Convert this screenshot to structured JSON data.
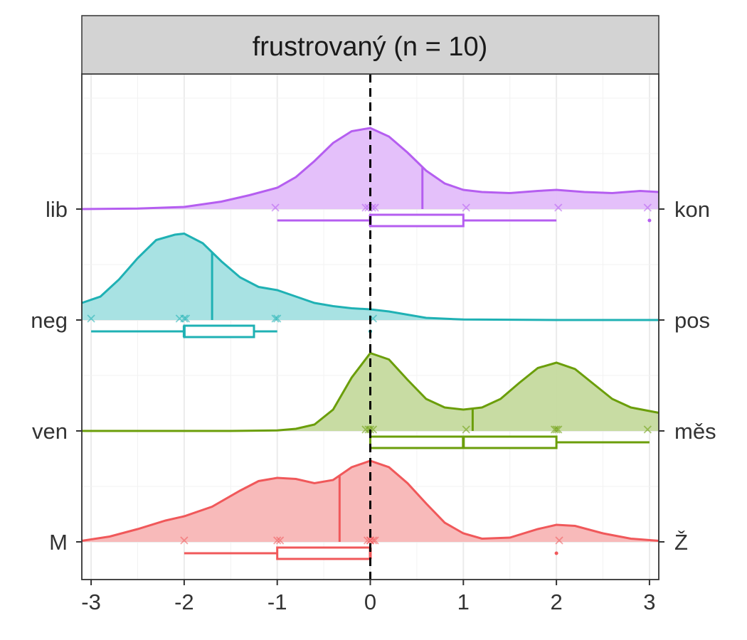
{
  "chart_data": {
    "type": "ridgeline",
    "title": "frustrovaný (n = 10)",
    "xlabel": "",
    "ylabel": "",
    "xlim": [
      -3.1,
      3.1
    ],
    "x_ticks": [
      -3,
      -2,
      -1,
      0,
      1,
      2,
      3
    ],
    "x_tick_labels": [
      "-3",
      "-2",
      "-1",
      "0",
      "1",
      "2",
      "3"
    ],
    "reference_line_x": 0,
    "grid": true,
    "legend": "none",
    "rows": [
      {
        "left_label": "M",
        "right_label": "Ž",
        "color": "#F0585A",
        "fill": "#F8B6B6",
        "median_line": -0.33,
        "points": [
          -2,
          -1,
          -0.97,
          -0.03,
          0,
          0,
          0.03,
          0.05,
          2.03
        ],
        "box": {
          "whisker_low": -2,
          "q1": -1,
          "median": 0,
          "q3": 0,
          "whisker_high": 0,
          "outliers": [
            2
          ]
        },
        "density": [
          [
            -3.1,
            0.01
          ],
          [
            -2.8,
            0.05
          ],
          [
            -2.5,
            0.12
          ],
          [
            -2.2,
            0.2
          ],
          [
            -2.0,
            0.24
          ],
          [
            -1.7,
            0.33
          ],
          [
            -1.4,
            0.48
          ],
          [
            -1.2,
            0.57
          ],
          [
            -1.0,
            0.6
          ],
          [
            -0.8,
            0.59
          ],
          [
            -0.6,
            0.55
          ],
          [
            -0.4,
            0.58
          ],
          [
            -0.2,
            0.7
          ],
          [
            0.0,
            0.76
          ],
          [
            0.2,
            0.7
          ],
          [
            0.4,
            0.55
          ],
          [
            0.6,
            0.36
          ],
          [
            0.8,
            0.18
          ],
          [
            1.0,
            0.08
          ],
          [
            1.2,
            0.03
          ],
          [
            1.5,
            0.04
          ],
          [
            1.8,
            0.12
          ],
          [
            2.0,
            0.16
          ],
          [
            2.2,
            0.15
          ],
          [
            2.5,
            0.08
          ],
          [
            2.8,
            0.03
          ],
          [
            3.1,
            0.01
          ]
        ]
      },
      {
        "left_label": "ven",
        "right_label": "měs",
        "color": "#6B9E0A",
        "fill": "#C5DA9E",
        "median_line": 1.1,
        "points": [
          -0.05,
          -0.02,
          0.0,
          0.03,
          1.03,
          1.98,
          2.0,
          2.02,
          2.98
        ],
        "box": {
          "whisker_low": 0,
          "q1": 0,
          "median": 1,
          "q3": 2,
          "whisker_high": 3,
          "outliers": []
        },
        "density": [
          [
            -3.1,
            0.0
          ],
          [
            -1.5,
            0.0
          ],
          [
            -1.0,
            0.005
          ],
          [
            -0.8,
            0.02
          ],
          [
            -0.6,
            0.06
          ],
          [
            -0.4,
            0.2
          ],
          [
            -0.2,
            0.5
          ],
          [
            0.0,
            0.73
          ],
          [
            0.2,
            0.67
          ],
          [
            0.4,
            0.48
          ],
          [
            0.6,
            0.3
          ],
          [
            0.8,
            0.22
          ],
          [
            1.0,
            0.2
          ],
          [
            1.2,
            0.22
          ],
          [
            1.4,
            0.3
          ],
          [
            1.6,
            0.45
          ],
          [
            1.8,
            0.59
          ],
          [
            2.0,
            0.64
          ],
          [
            2.2,
            0.58
          ],
          [
            2.4,
            0.44
          ],
          [
            2.6,
            0.3
          ],
          [
            2.8,
            0.22
          ],
          [
            3.1,
            0.17
          ]
        ]
      },
      {
        "left_label": "neg",
        "right_label": "pos",
        "color": "#1FB1B4",
        "fill": "#A3E0E1",
        "median_line": -1.7,
        "points": [
          -3,
          -2.05,
          -2.0,
          -1.98,
          -1.02,
          -1.0,
          0.03
        ],
        "box": {
          "whisker_low": -3,
          "q1": -2,
          "median": -2,
          "q3": -1.25,
          "whisker_high": -1,
          "outliers": [
            0
          ]
        },
        "density": [
          [
            -3.1,
            0.16
          ],
          [
            -2.9,
            0.22
          ],
          [
            -2.7,
            0.38
          ],
          [
            -2.5,
            0.58
          ],
          [
            -2.3,
            0.75
          ],
          [
            -2.1,
            0.8
          ],
          [
            -2.0,
            0.81
          ],
          [
            -1.8,
            0.72
          ],
          [
            -1.6,
            0.55
          ],
          [
            -1.4,
            0.4
          ],
          [
            -1.2,
            0.31
          ],
          [
            -1.0,
            0.28
          ],
          [
            -0.8,
            0.22
          ],
          [
            -0.6,
            0.16
          ],
          [
            -0.4,
            0.13
          ],
          [
            -0.2,
            0.11
          ],
          [
            0.0,
            0.1
          ],
          [
            0.2,
            0.08
          ],
          [
            0.4,
            0.05
          ],
          [
            0.6,
            0.02
          ],
          [
            1.0,
            0.005
          ],
          [
            2.0,
            0.0
          ],
          [
            3.1,
            0.0
          ]
        ]
      },
      {
        "left_label": "lib",
        "right_label": "kon",
        "color": "#B55EF0",
        "fill": "#E3BDFA",
        "median_line": 0.56,
        "points": [
          -1.02,
          -0.05,
          -0.02,
          0.02,
          0.05,
          1.03,
          2.02,
          2.98
        ],
        "box": {
          "whisker_low": -1,
          "q1": 0,
          "median": 0,
          "q3": 1,
          "whisker_high": 2,
          "outliers": [
            3
          ]
        },
        "density": [
          [
            -3.1,
            0.0
          ],
          [
            -2.5,
            0.005
          ],
          [
            -2.0,
            0.02
          ],
          [
            -1.6,
            0.07
          ],
          [
            -1.3,
            0.13
          ],
          [
            -1.0,
            0.2
          ],
          [
            -0.8,
            0.3
          ],
          [
            -0.6,
            0.45
          ],
          [
            -0.4,
            0.62
          ],
          [
            -0.2,
            0.73
          ],
          [
            0.0,
            0.76
          ],
          [
            0.2,
            0.68
          ],
          [
            0.4,
            0.53
          ],
          [
            0.6,
            0.36
          ],
          [
            0.8,
            0.24
          ],
          [
            1.0,
            0.18
          ],
          [
            1.2,
            0.16
          ],
          [
            1.5,
            0.15
          ],
          [
            1.8,
            0.17
          ],
          [
            2.0,
            0.18
          ],
          [
            2.3,
            0.16
          ],
          [
            2.6,
            0.15
          ],
          [
            2.9,
            0.17
          ],
          [
            3.1,
            0.16
          ]
        ]
      }
    ]
  }
}
